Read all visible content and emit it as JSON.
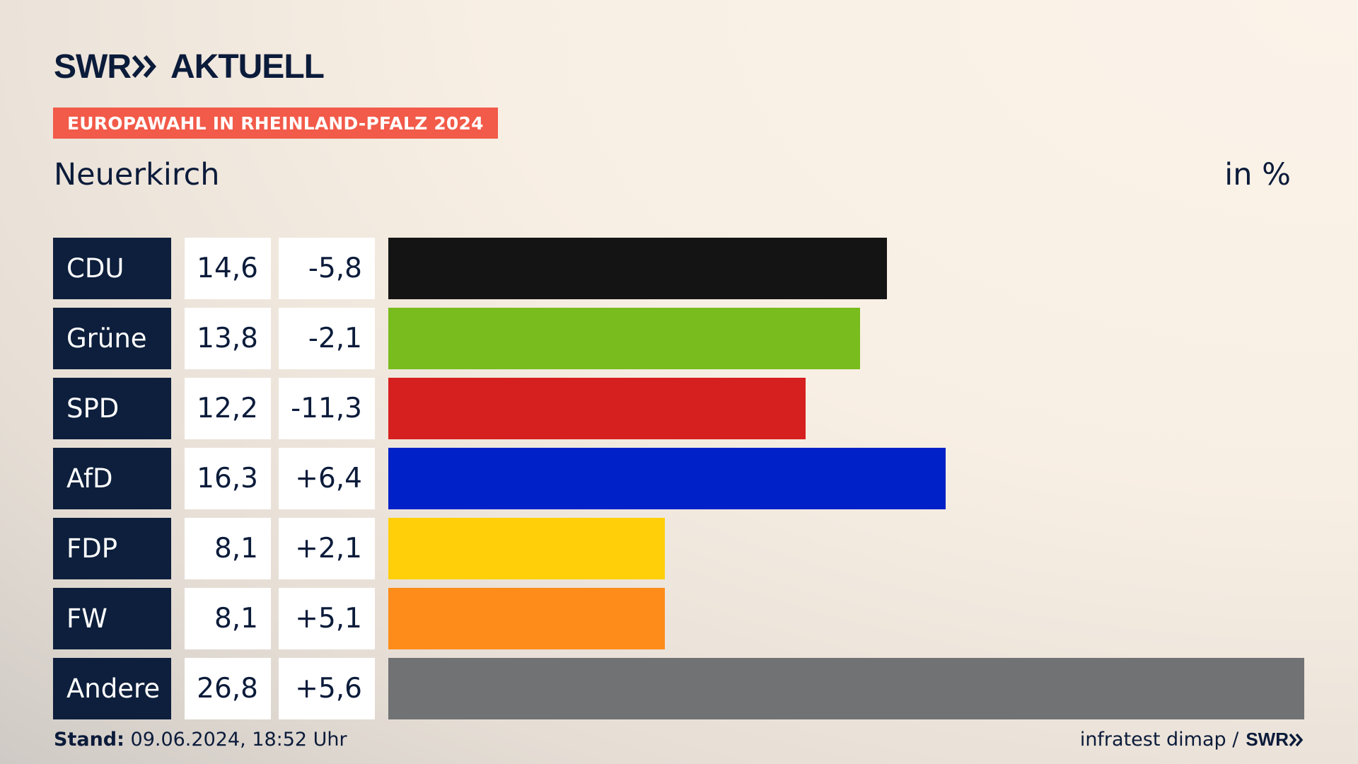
{
  "header": {
    "brand": "SWR",
    "brand_suffix": "AKTUELL",
    "badge": "EUROPAWAHL IN RHEINLAND-PFALZ 2024",
    "location": "Neuerkirch",
    "unit": "in %"
  },
  "footer": {
    "stand_label": "Stand:",
    "stand_value": "09.06.2024, 18:52 Uhr",
    "source": "infratest dimap /",
    "source_brand": "SWR"
  },
  "colors": {
    "navy": "#0d1f3c",
    "badge": "#f25a49"
  },
  "chart_data": {
    "type": "bar",
    "categories": [
      "CDU",
      "Grüne",
      "SPD",
      "AfD",
      "FDP",
      "FW",
      "Andere"
    ],
    "values": [
      14.6,
      13.8,
      12.2,
      16.3,
      8.1,
      8.1,
      26.8
    ],
    "value_labels": [
      "14,6",
      "13,8",
      "12,2",
      "16,3",
      "8,1",
      "8,1",
      "26,8"
    ],
    "changes": [
      -5.8,
      -2.1,
      -11.3,
      6.4,
      2.1,
      5.1,
      5.6
    ],
    "change_labels": [
      "-5,8",
      "-2,1",
      "-11,3",
      "+6,4",
      "+2,1",
      "+5,1",
      "+5,6"
    ],
    "bar_colors": [
      "#141414",
      "#79bc1e",
      "#d6201f",
      "#0021c7",
      "#ffcf0a",
      "#fd8c1a",
      "#717273"
    ],
    "title": "Neuerkirch",
    "ylabel": "in %",
    "xlim": [
      0,
      26.8
    ],
    "grid": false,
    "legend": "none"
  }
}
